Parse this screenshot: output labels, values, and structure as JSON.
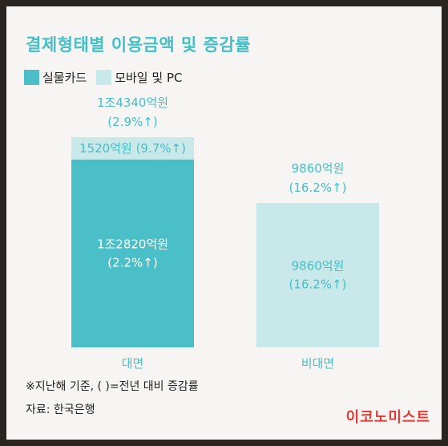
{
  "title": "결제형태별 이용금액 및 증감률",
  "legend": [
    {
      "label": "실물카드",
      "color": "#4bbfc7"
    },
    {
      "label": "모바일 및 PC",
      "color": "#c8e8ea"
    }
  ],
  "chart_data": {
    "type": "bar",
    "stacked": true,
    "categories": [
      "대면",
      "비대면"
    ],
    "series": [
      {
        "name": "실물카드",
        "values": [
          12820,
          0
        ],
        "color": "#4bbfc7"
      },
      {
        "name": "모바일 및 PC",
        "values": [
          1520,
          9860
        ],
        "color": "#c8e8ea"
      }
    ],
    "segment_labels": [
      {
        "category": "대면",
        "series": "실물카드",
        "lines": [
          "1조2820억원",
          "(2.2%↑)"
        ]
      },
      {
        "category": "대면",
        "series": "모바일 및 PC",
        "lines": [
          "1520억원 (9.7%↑)"
        ]
      },
      {
        "category": "비대면",
        "series": "모바일 및 PC",
        "lines": [
          "9860억원",
          "(16.2%↑)"
        ]
      }
    ],
    "total_labels": [
      {
        "category": "대면",
        "lines": [
          "1조4340억원",
          "(2.9%↑)"
        ]
      },
      {
        "category": "비대면",
        "lines": [
          "9860억원",
          "(16.2%↑)"
        ]
      }
    ],
    "ylim": [
      0,
      14340
    ],
    "grid": false,
    "legend_position": "top-left",
    "label_color": "#45bfc6",
    "inner_label_color": "#ffffff"
  },
  "footnotes": [
    "※지난해 기준, (  )=전년 대비 증감률",
    "자료: 한국은행"
  ],
  "logo": "이코노미스트"
}
